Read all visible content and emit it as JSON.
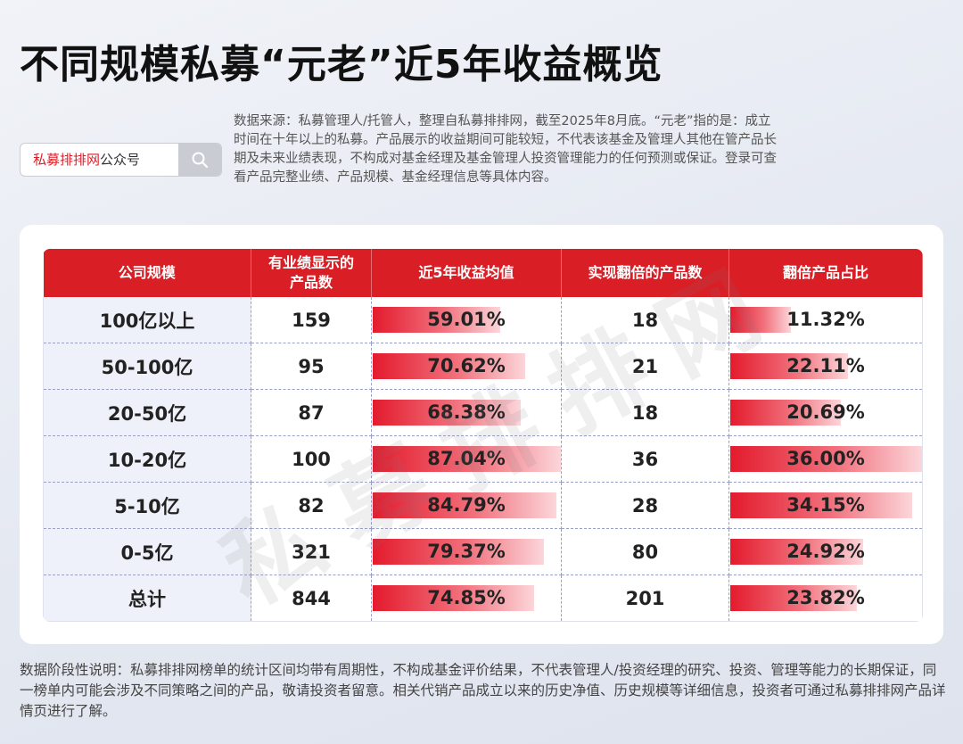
{
  "title": "不同规模私募“元老”近5年收益概览",
  "search": {
    "brand": "私募排排网",
    "suffix": "公众号",
    "icon": "search-icon"
  },
  "source_note": "数据来源：私募管理人/托管人，整理自私募排排网，截至2025年8月底。“元老”指的是：成立时间在十年以上的私募。产品展示的收益期间可能较短，不代表该基金及管理人其他在管产品长期及未来业绩表现，不构成对基金经理及基金管理人投资管理能力的任何预测或保证。登录可查看产品完整业绩、产品规模、基金经理信息等具体内容。",
  "watermark": "私募排排网",
  "table": {
    "headers": [
      "公司规模",
      "有业绩显示的产品数",
      "近5年收益均值",
      "实现翻倍的产品数",
      "翻倍产品占比"
    ],
    "rows": [
      {
        "scale": "100亿以上",
        "count": "159",
        "return": "59.01%",
        "return_value": 59.01,
        "doubled": "18",
        "ratio": "11.32%",
        "ratio_value": 11.32
      },
      {
        "scale": "50-100亿",
        "count": "95",
        "return": "70.62%",
        "return_value": 70.62,
        "doubled": "21",
        "ratio": "22.11%",
        "ratio_value": 22.11
      },
      {
        "scale": "20-50亿",
        "count": "87",
        "return": "68.38%",
        "return_value": 68.38,
        "doubled": "18",
        "ratio": "20.69%",
        "ratio_value": 20.69
      },
      {
        "scale": "10-20亿",
        "count": "100",
        "return": "87.04%",
        "return_value": 87.04,
        "doubled": "36",
        "ratio": "36.00%",
        "ratio_value": 36.0
      },
      {
        "scale": "5-10亿",
        "count": "82",
        "return": "84.79%",
        "return_value": 84.79,
        "doubled": "28",
        "ratio": "34.15%",
        "ratio_value": 34.15
      },
      {
        "scale": "0-5亿",
        "count": "321",
        "return": "79.37%",
        "return_value": 79.37,
        "doubled": "80",
        "ratio": "24.92%",
        "ratio_value": 24.92
      },
      {
        "scale": "总计",
        "count": "844",
        "return": "74.85%",
        "return_value": 74.85,
        "doubled": "201",
        "ratio": "23.82%",
        "ratio_value": 23.82
      }
    ]
  },
  "disclaimer": "数据阶段性说明：私募排排网榜单的统计区间均带有周期性，不构成基金评价结果，不代表管理人/投资经理的研究、投资、管理等能力的长期保证，同一榜单内可能会涉及不同策略之间的产品，敬请投资者留意。相关代销产品成立以来的历史净值、历史规模等详细信息，投资者可通过私募排排网产品详情页进行了解。",
  "colors": {
    "header_red": "#d91e25",
    "brand_red": "#d81e28",
    "bar_start": "#e31b2d",
    "bar_end": "#fbd6da"
  }
}
